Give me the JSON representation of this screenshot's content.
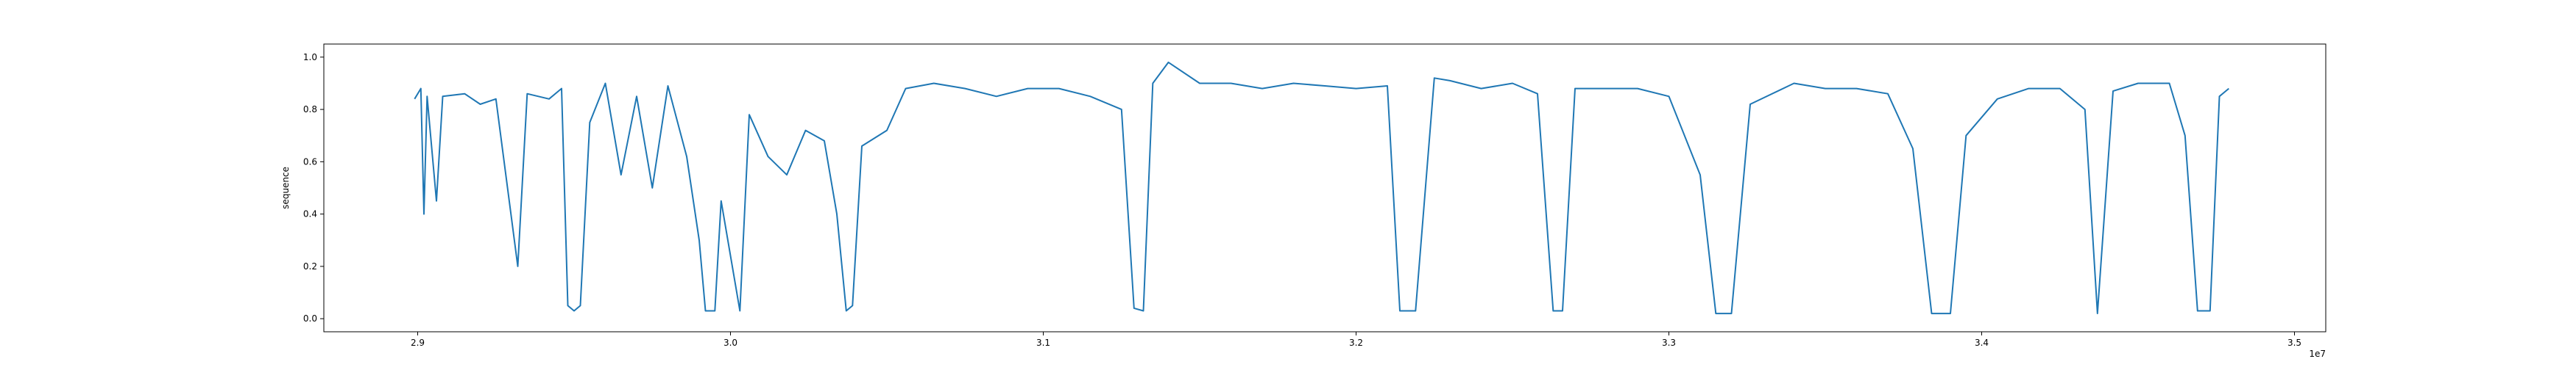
{
  "chart_data": {
    "type": "line",
    "title": "",
    "xlabel": "",
    "ylabel": "sequence",
    "x_offset_label": "1e7",
    "xlim": [
      28700000,
      35100000
    ],
    "ylim": [
      -0.05,
      1.05
    ],
    "x_ticks": [
      29000000,
      30000000,
      31000000,
      32000000,
      33000000,
      34000000,
      35000000
    ],
    "x_tick_labels": [
      "2.9",
      "3.0",
      "3.1",
      "3.2",
      "3.3",
      "3.4",
      "3.5"
    ],
    "y_ticks": [
      0.0,
      0.2,
      0.4,
      0.6,
      0.8,
      1.0
    ],
    "y_tick_labels": [
      "0.0",
      "0.2",
      "0.4",
      "0.6",
      "0.8",
      "1.0"
    ],
    "grid": false,
    "line_color": "#1f77b4",
    "series": [
      {
        "name": "",
        "points": [
          [
            28990000,
            0.84
          ],
          [
            29010000,
            0.88
          ],
          [
            29020000,
            0.4
          ],
          [
            29030000,
            0.85
          ],
          [
            29060000,
            0.45
          ],
          [
            29080000,
            0.85
          ],
          [
            29150000,
            0.86
          ],
          [
            29200000,
            0.82
          ],
          [
            29250000,
            0.84
          ],
          [
            29320000,
            0.2
          ],
          [
            29350000,
            0.86
          ],
          [
            29420000,
            0.84
          ],
          [
            29460000,
            0.88
          ],
          [
            29480000,
            0.05
          ],
          [
            29500000,
            0.03
          ],
          [
            29520000,
            0.05
          ],
          [
            29550000,
            0.75
          ],
          [
            29600000,
            0.9
          ],
          [
            29650000,
            0.55
          ],
          [
            29700000,
            0.85
          ],
          [
            29750000,
            0.5
          ],
          [
            29800000,
            0.89
          ],
          [
            29860000,
            0.62
          ],
          [
            29900000,
            0.3
          ],
          [
            29920000,
            0.03
          ],
          [
            29950000,
            0.03
          ],
          [
            29970000,
            0.45
          ],
          [
            30030000,
            0.03
          ],
          [
            30060000,
            0.78
          ],
          [
            30120000,
            0.62
          ],
          [
            30180000,
            0.55
          ],
          [
            30240000,
            0.72
          ],
          [
            30300000,
            0.68
          ],
          [
            30340000,
            0.4
          ],
          [
            30370000,
            0.03
          ],
          [
            30390000,
            0.05
          ],
          [
            30420000,
            0.66
          ],
          [
            30500000,
            0.72
          ],
          [
            30560000,
            0.88
          ],
          [
            30650000,
            0.9
          ],
          [
            30750000,
            0.88
          ],
          [
            30850000,
            0.85
          ],
          [
            30950000,
            0.88
          ],
          [
            31050000,
            0.88
          ],
          [
            31150000,
            0.85
          ],
          [
            31250000,
            0.8
          ],
          [
            31290000,
            0.04
          ],
          [
            31320000,
            0.03
          ],
          [
            31350000,
            0.9
          ],
          [
            31400000,
            0.98
          ],
          [
            31500000,
            0.9
          ],
          [
            31600000,
            0.9
          ],
          [
            31700000,
            0.88
          ],
          [
            31800000,
            0.9
          ],
          [
            31900000,
            0.89
          ],
          [
            32000000,
            0.88
          ],
          [
            32100000,
            0.89
          ],
          [
            32140000,
            0.03
          ],
          [
            32190000,
            0.03
          ],
          [
            32250000,
            0.92
          ],
          [
            32300000,
            0.91
          ],
          [
            32400000,
            0.88
          ],
          [
            32500000,
            0.9
          ],
          [
            32580000,
            0.86
          ],
          [
            32630000,
            0.03
          ],
          [
            32660000,
            0.03
          ],
          [
            32700000,
            0.88
          ],
          [
            32800000,
            0.88
          ],
          [
            32900000,
            0.88
          ],
          [
            33000000,
            0.85
          ],
          [
            33100000,
            0.55
          ],
          [
            33150000,
            0.02
          ],
          [
            33200000,
            0.02
          ],
          [
            33260000,
            0.82
          ],
          [
            33400000,
            0.9
          ],
          [
            33500000,
            0.88
          ],
          [
            33600000,
            0.88
          ],
          [
            33700000,
            0.86
          ],
          [
            33780000,
            0.65
          ],
          [
            33840000,
            0.02
          ],
          [
            33900000,
            0.02
          ],
          [
            33950000,
            0.7
          ],
          [
            34050000,
            0.84
          ],
          [
            34150000,
            0.88
          ],
          [
            34250000,
            0.88
          ],
          [
            34330000,
            0.8
          ],
          [
            34370000,
            0.02
          ],
          [
            34420000,
            0.87
          ],
          [
            34500000,
            0.9
          ],
          [
            34600000,
            0.9
          ],
          [
            34650000,
            0.7
          ],
          [
            34690000,
            0.03
          ],
          [
            34730000,
            0.03
          ],
          [
            34760000,
            0.85
          ],
          [
            34790000,
            0.88
          ]
        ]
      }
    ]
  }
}
